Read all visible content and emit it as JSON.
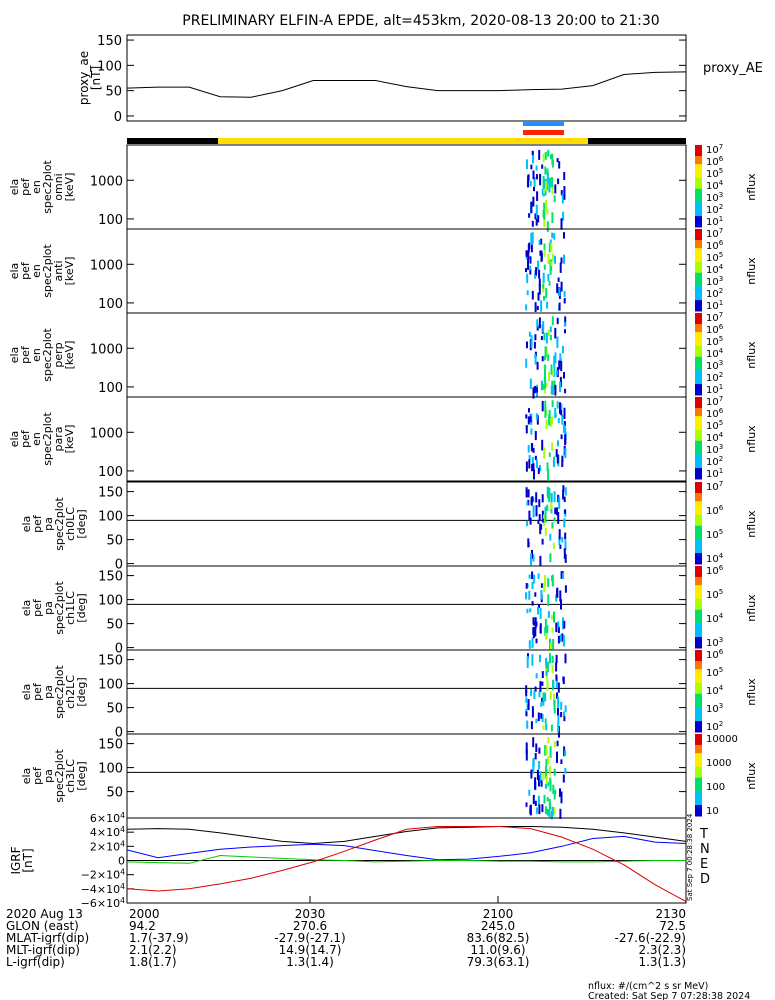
{
  "title": "PRELIMINARY ELFIN-A EPDE, alt=453km, 2020-08-13 20:00 to 21:30",
  "proxy_panel": {
    "ylabel": [
      "proxy_ae",
      "[nT]"
    ],
    "legend": "proxy_AE",
    "yticks": [
      "150",
      "100",
      "50",
      "0"
    ],
    "ylim": [
      -10,
      160
    ]
  },
  "panels": [
    {
      "ylabel": [
        "ela",
        "pef",
        "en",
        "spec2plot",
        "omni",
        "[keV]"
      ],
      "yticks": [
        "1000",
        "100"
      ],
      "cbar_ticks": [
        "10^7",
        "10^6",
        "10^5",
        "10^4",
        "10^3",
        "10^2",
        "10^1"
      ],
      "cbar_label": "nflux"
    },
    {
      "ylabel": [
        "ela",
        "pef",
        "en",
        "spec2plot",
        "anti",
        "[keV]"
      ],
      "yticks": [
        "1000",
        "100"
      ],
      "cbar_ticks": [
        "10^7",
        "10^6",
        "10^5",
        "10^4",
        "10^3",
        "10^2",
        "10^1"
      ],
      "cbar_label": "nflux"
    },
    {
      "ylabel": [
        "ela",
        "pef",
        "en",
        "spec2plot",
        "perp",
        "[keV]"
      ],
      "yticks": [
        "1000",
        "100"
      ],
      "cbar_ticks": [
        "10^7",
        "10^6",
        "10^5",
        "10^4",
        "10^3",
        "10^2",
        "10^1"
      ],
      "cbar_label": "nflux"
    },
    {
      "ylabel": [
        "ela",
        "pef",
        "en",
        "spec2plot",
        "para",
        "[keV]"
      ],
      "yticks": [
        "1000",
        "100"
      ],
      "cbar_ticks": [
        "10^7",
        "10^6",
        "10^5",
        "10^4",
        "10^3",
        "10^2",
        "10^1"
      ],
      "cbar_label": "nflux"
    },
    {
      "ylabel": [
        "ela",
        "pef",
        "pa",
        "spec2plot",
        "ch0LC",
        "[deg]"
      ],
      "yticks": [
        "150",
        "100",
        "50",
        "0"
      ],
      "cbar_ticks": [
        "10^7",
        "10^6",
        "10^5",
        "10^4"
      ],
      "cbar_label": "nflux"
    },
    {
      "ylabel": [
        "ela",
        "pef",
        "pa",
        "spec2plot",
        "ch1LC",
        "[deg]"
      ],
      "yticks": [
        "150",
        "100",
        "50",
        "0"
      ],
      "cbar_ticks": [
        "10^6",
        "10^5",
        "10^4",
        "10^3"
      ],
      "cbar_label": "nflux"
    },
    {
      "ylabel": [
        "ela",
        "pef",
        "pa",
        "spec2plot",
        "ch2LC",
        "[deg]"
      ],
      "yticks": [
        "150",
        "100",
        "50",
        "0"
      ],
      "cbar_ticks": [
        "10^6",
        "10^5",
        "10^4",
        "10^3",
        "10^2"
      ],
      "cbar_label": "nflux"
    },
    {
      "ylabel": [
        "ela",
        "pef",
        "pa",
        "spec2plot",
        "ch3LC",
        "[deg]"
      ],
      "yticks": [
        "150",
        "100",
        "50"
      ],
      "cbar_ticks": [
        "10000",
        "1000",
        "100",
        "10"
      ],
      "cbar_label": "nflux"
    }
  ],
  "igrf_panel": {
    "ylabel": [
      "IGRF",
      "[nT]"
    ],
    "yticks": [
      "6×10^4",
      "4×10^4",
      "2×10^4",
      "0",
      "−2×10^4",
      "−4×10^4",
      "−6×10^4"
    ],
    "legend": [
      {
        "name": "T",
        "color": "#000000"
      },
      {
        "name": "N",
        "color": "#0000ff"
      },
      {
        "name": "E",
        "color": "#00cc00"
      },
      {
        "name": "D",
        "color": "#dd0000"
      }
    ],
    "side_note": "Sat Sep  7 00:28:38 2024"
  },
  "xaxis": {
    "labels": [
      "2000",
      "2030",
      "2100",
      "2130"
    ],
    "rows": [
      {
        "name": "2020 Aug 13",
        "values": [
          "2000",
          "2030",
          "2100",
          "2130"
        ]
      },
      {
        "name": "GLON (east)",
        "values": [
          "94.2",
          "270.6",
          "245.0",
          "72.5"
        ]
      },
      {
        "name": "MLAT-igrf(dip)",
        "values": [
          "1.7(-37.9)",
          "-27.9(-27.1)",
          "83.6(82.5)",
          "-27.6(-22.9)"
        ]
      },
      {
        "name": "MLT-igrf(dip)",
        "values": [
          "2.1(2.2)",
          "14.9(14.7)",
          "11.0(9.6)",
          "2.3(2.3)"
        ]
      },
      {
        "name": "L-igrf(dip)",
        "values": [
          "1.8(1.7)",
          "1.3(1.4)",
          "79.3(63.1)",
          "1.3(1.3)"
        ]
      }
    ]
  },
  "footer": {
    "units": "nflux: #/(cm^2 s sr MeV)",
    "created": "Created: Sat Sep  7 07:28:38 2024"
  },
  "colors": {
    "day_bar": "#ffdd00",
    "night_bar": "#000000",
    "science_zone_top": "#1e90ff",
    "science_zone_bottom": "#ff2200",
    "proxy_line": "#000000"
  },
  "chart_data": [
    {
      "type": "line",
      "ylabel": "proxy_ae [nT]",
      "x": [
        "20:00",
        "20:05",
        "20:10",
        "20:15",
        "20:20",
        "20:25",
        "20:30",
        "20:35",
        "20:40",
        "20:45",
        "20:50",
        "20:55",
        "21:00",
        "21:05",
        "21:10",
        "21:15",
        "21:20",
        "21:25",
        "21:30"
      ],
      "series": [
        {
          "name": "proxy_AE",
          "values": [
            55,
            57,
            57,
            38,
            37,
            50,
            70,
            70,
            70,
            58,
            50,
            50,
            50,
            52,
            53,
            60,
            82,
            86,
            87
          ]
        }
      ],
      "ylim": [
        -10,
        160
      ]
    },
    {
      "type": "line",
      "ylabel": "IGRF [nT]",
      "x": [
        "20:00",
        "20:05",
        "20:10",
        "20:15",
        "20:20",
        "20:25",
        "20:30",
        "20:35",
        "20:40",
        "20:45",
        "20:50",
        "20:55",
        "21:00",
        "21:05",
        "21:10",
        "21:15",
        "21:20",
        "21:25",
        "21:30"
      ],
      "series": [
        {
          "name": "T",
          "values": [
            44000,
            45000,
            44000,
            39000,
            33000,
            27000,
            24000,
            27000,
            34000,
            41000,
            46000,
            47000,
            48000,
            48000,
            47000,
            44000,
            39000,
            33000,
            27000
          ]
        },
        {
          "name": "N",
          "values": [
            15000,
            4000,
            10000,
            16000,
            19000,
            21000,
            23000,
            21000,
            14000,
            7000,
            1000,
            2000,
            6000,
            11000,
            20000,
            31000,
            34000,
            26000,
            24000
          ]
        },
        {
          "name": "E",
          "values": [
            -2000,
            -3000,
            -4000,
            7000,
            5000,
            3000,
            1000,
            0,
            -2000,
            -1000,
            0,
            0,
            -1000,
            -1000,
            -2000,
            -2000,
            -1000,
            0,
            0
          ]
        },
        {
          "name": "D",
          "values": [
            -40000,
            -43000,
            -40000,
            -33000,
            -25000,
            -14000,
            -2000,
            13000,
            29000,
            44000,
            48000,
            48000,
            48000,
            45000,
            33000,
            16000,
            -6000,
            -34000,
            -58000
          ]
        }
      ],
      "ylim": [
        -60000,
        60000
      ]
    }
  ]
}
